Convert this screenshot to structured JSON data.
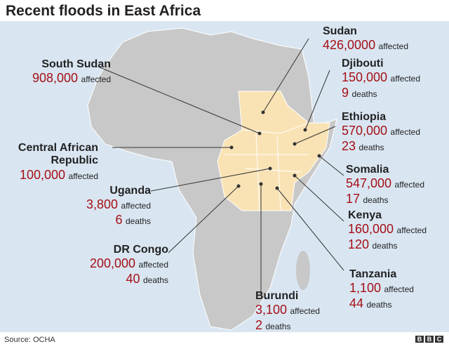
{
  "title": "Recent floods in East Africa",
  "labels": {
    "affected": "affected",
    "deaths": "deaths"
  },
  "countries": [
    {
      "name": "Sudan",
      "affected": "426,0000"
    },
    {
      "name": "Djibouti",
      "affected": "150,000",
      "deaths": "9"
    },
    {
      "name": "Ethiopia",
      "affected": "570,000",
      "deaths": "23"
    },
    {
      "name": "Somalia",
      "affected": "547,000",
      "deaths": "17"
    },
    {
      "name": "Kenya",
      "affected": "160,000",
      "deaths": "120"
    },
    {
      "name": "Tanzania",
      "affected": "1,100",
      "deaths": "44"
    },
    {
      "name": "Burundi",
      "affected": "3,100",
      "deaths": "2"
    },
    {
      "name": "DR Congo",
      "affected": "200,000",
      "deaths": "40"
    },
    {
      "name": "Uganda",
      "affected": "3,800",
      "deaths": "6"
    },
    {
      "name": "Central African Republic",
      "affected": "100,000"
    },
    {
      "name": "South Sudan",
      "affected": "908,000"
    }
  ],
  "source": "Source: OCHA",
  "logo": "BBC"
}
